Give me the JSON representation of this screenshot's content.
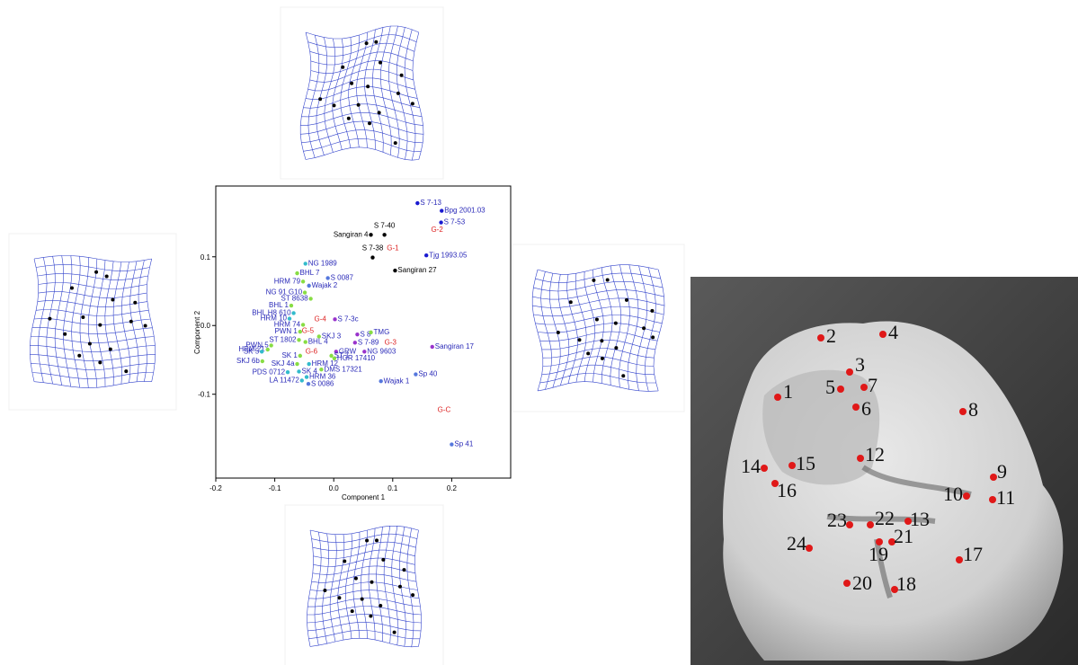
{
  "chart_data": {
    "type": "scatter",
    "xlabel": "Component 1",
    "ylabel": "Component 2",
    "xlim": [
      -0.2,
      0.3
    ],
    "ylim": [
      -0.222,
      0.203
    ],
    "xticks": [
      -0.2,
      -0.1,
      {
        "value": 0,
        "label": "0.0"
      },
      0.1,
      0.2
    ],
    "yticks": [
      -0.1,
      {
        "value": 0,
        "label": "0.0"
      },
      0.1
    ],
    "labels": [
      "S 7-13",
      "Bpg 2001.03",
      "S 7-53",
      "Sangiran 4",
      "S 7-40",
      "S 7-38",
      "Tjg 1993.05",
      "Sangiran 27",
      "NG 1989",
      "BHL 7",
      "S 0087",
      "HRM 79",
      "Wajak 2",
      "NG 91 G10",
      "ST 8638",
      "BHL 1",
      "BHL H8 610",
      "HRM 10",
      "S 7-3c",
      "HRM 74",
      "PWN 1",
      "S 8",
      "TMG",
      "SKJ 3",
      "ST 1802",
      "BHL 4",
      "S 7-89",
      "PWN 5",
      "HRM 21",
      "SK 5",
      "GRW",
      "NG 9603",
      "SK 1",
      "ST 1",
      "HGR 17410",
      "SKJ 6b",
      "SKJ 4a",
      "HRM 12",
      "PDS 0712",
      "SK 4",
      "DMS 17321",
      "HRM 36",
      "LA 11472",
      "S 0086",
      "Wajak 1",
      "Sp 40",
      "Sangiran 17",
      "Sp 41"
    ],
    "x": [
      0.142,
      0.183,
      0.182,
      0.063,
      0.086,
      0.066,
      0.157,
      0.104,
      -0.048,
      -0.062,
      -0.01,
      -0.052,
      -0.042,
      -0.049,
      -0.039,
      -0.072,
      -0.068,
      -0.075,
      0.002,
      -0.052,
      -0.057,
      0.04,
      0.063,
      -0.025,
      -0.059,
      -0.048,
      0.036,
      -0.106,
      -0.112,
      -0.122,
      0.004,
      0.052,
      -0.057,
      -0.004,
      0.001,
      -0.121,
      -0.062,
      -0.042,
      -0.078,
      -0.059,
      -0.021,
      -0.046,
      -0.054,
      -0.043,
      0.08,
      0.139,
      0.167,
      0.2
    ],
    "y": [
      0.178,
      0.167,
      0.15,
      0.132,
      0.132,
      0.099,
      0.102,
      0.08,
      0.09,
      0.076,
      0.069,
      0.064,
      0.058,
      0.048,
      0.039,
      0.029,
      0.018,
      0.01,
      0.009,
      0.001,
      -0.009,
      -0.013,
      -0.01,
      -0.016,
      -0.021,
      -0.024,
      -0.025,
      -0.029,
      -0.035,
      -0.038,
      -0.038,
      -0.038,
      -0.044,
      -0.044,
      -0.048,
      -0.052,
      -0.056,
      -0.056,
      -0.068,
      -0.067,
      -0.064,
      -0.075,
      -0.08,
      -0.085,
      -0.081,
      -0.071,
      -0.031,
      -0.173
    ],
    "colors": [
      "#1a1ad0",
      "#1a1ad0",
      "#1a1ad0",
      "#000000",
      "#000000",
      "#000000",
      "#1a1ad0",
      "#000000",
      "#33bbcc",
      "#88dd44",
      "#5577dd",
      "#88dd44",
      "#5577dd",
      "#88dd44",
      "#88dd44",
      "#88dd44",
      "#33bbcc",
      "#33bbcc",
      "#9933cc",
      "#88dd44",
      "#88dd44",
      "#9933cc",
      "#88dd44",
      "#88dd44",
      "#88dd44",
      "#88dd44",
      "#9933cc",
      "#88dd44",
      "#88dd44",
      "#33bbcc",
      "#9933cc",
      "#9933cc",
      "#88dd44",
      "#88dd44",
      "#88dd44",
      "#88dd44",
      "#88dd44",
      "#33bbcc",
      "#33bbcc",
      "#33bbcc",
      "#88dd44",
      "#33bbcc",
      "#33bbcc",
      "#5577dd",
      "#5577dd",
      "#5577dd",
      "#9933cc",
      "#5577dd"
    ],
    "annotation_color": "#dd2222",
    "annotations": [
      {
        "text": "G-1",
        "x": 0.09,
        "y": 0.112
      },
      {
        "text": "G-2",
        "x": 0.165,
        "y": 0.139
      },
      {
        "text": "G-3",
        "x": 0.086,
        "y": -0.025
      },
      {
        "text": "G-4",
        "x": -0.033,
        "y": 0.009
      },
      {
        "text": "G-5",
        "x": -0.054,
        "y": -0.008
      },
      {
        "text": "G-6",
        "x": -0.048,
        "y": -0.038
      },
      {
        "text": "G-C",
        "x": 0.176,
        "y": -0.123
      }
    ]
  },
  "landmarks": {
    "color": "#e01818",
    "labels": [
      "1",
      "2",
      "3",
      "4",
      "5",
      "6",
      "7",
      "8",
      "9",
      "10",
      "11",
      "12",
      "13",
      "14",
      "15",
      "16",
      "17",
      "18",
      "19",
      "20",
      "21",
      "22",
      "23",
      "24"
    ]
  }
}
